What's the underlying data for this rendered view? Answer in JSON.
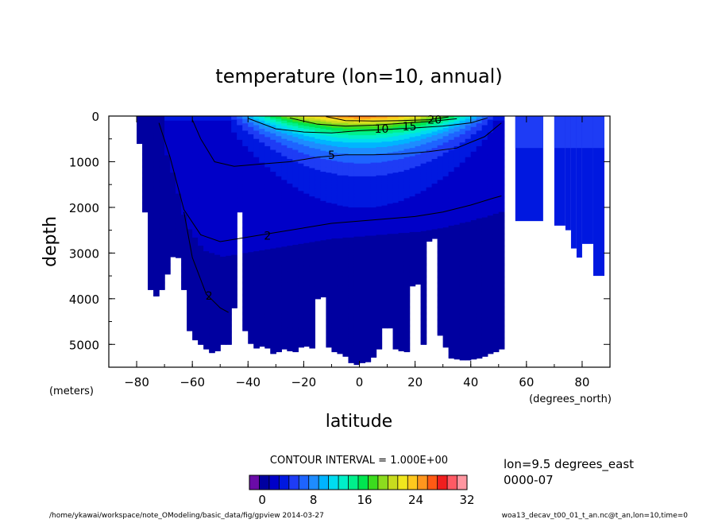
{
  "chart_data": {
    "type": "heatmap",
    "title": "temperature (lon=10, annual)",
    "xlabel": "latitude",
    "ylabel": "depth",
    "x_unit": "(degrees_north)",
    "y_unit": "(meters)",
    "xlim": [
      -90,
      90
    ],
    "ylim": [
      5500,
      0
    ],
    "y_reversed": true,
    "x_ticks": [
      -80,
      -60,
      -40,
      -20,
      0,
      20,
      40,
      60,
      80
    ],
    "x_tick_labels": [
      "−80",
      "−60",
      "−40",
      "−20",
      "0",
      "20",
      "40",
      "60",
      "80"
    ],
    "y_ticks": [
      0,
      1000,
      2000,
      3000,
      4000,
      5000
    ],
    "y_tick_labels": [
      "0",
      "1000",
      "2000",
      "3000",
      "4000",
      "5000"
    ],
    "contour_interval_text": "CONTOUR INTERVAL = 1.000E+00",
    "contour_labels": [
      {
        "text": "20",
        "lat": 27,
        "depth": 80
      },
      {
        "text": "15",
        "lat": 18,
        "depth": 230
      },
      {
        "text": "10",
        "lat": 8,
        "depth": 280
      },
      {
        "text": "5",
        "lat": -10,
        "depth": 850
      },
      {
        "text": "2",
        "lat": -33,
        "depth": 2620
      },
      {
        "text": "2",
        "lat": -54,
        "depth": 3930
      }
    ],
    "seafloor_depth": [
      {
        "lat": -80,
        "depth": 600
      },
      {
        "lat": -78,
        "depth": 2100
      },
      {
        "lat": -76,
        "depth": 3800
      },
      {
        "lat": -73,
        "depth": 4000
      },
      {
        "lat": -71,
        "depth": 3600
      },
      {
        "lat": -69,
        "depth": 3300
      },
      {
        "lat": -67,
        "depth": 2850
      },
      {
        "lat": -65,
        "depth": 3350
      },
      {
        "lat": -62,
        "depth": 4700
      },
      {
        "lat": -60,
        "depth": 4900
      },
      {
        "lat": -56,
        "depth": 5100
      },
      {
        "lat": -53,
        "depth": 5200
      },
      {
        "lat": -50,
        "depth": 5000
      },
      {
        "lat": -47,
        "depth": 5000
      },
      {
        "lat": -46,
        "depth": 4200
      },
      {
        "lat": -44,
        "depth": 2100
      },
      {
        "lat": -42,
        "depth": 4700
      },
      {
        "lat": -39,
        "depth": 5100
      },
      {
        "lat": -35,
        "depth": 5000
      },
      {
        "lat": -32,
        "depth": 5200
      },
      {
        "lat": -28,
        "depth": 5100
      },
      {
        "lat": -24,
        "depth": 5150
      },
      {
        "lat": -21,
        "depth": 5000
      },
      {
        "lat": -17,
        "depth": 5100
      },
      {
        "lat": -15,
        "depth": 2900
      },
      {
        "lat": -13,
        "depth": 5000
      },
      {
        "lat": -10,
        "depth": 5150
      },
      {
        "lat": -6,
        "depth": 5250
      },
      {
        "lat": -3,
        "depth": 5450
      },
      {
        "lat": 0,
        "depth": 5400
      },
      {
        "lat": 3,
        "depth": 5350
      },
      {
        "lat": 6,
        "depth": 5100
      },
      {
        "lat": 9,
        "depth": 4400
      },
      {
        "lat": 12,
        "depth": 5100
      },
      {
        "lat": 16,
        "depth": 5150
      },
      {
        "lat": 19,
        "depth": 3000
      },
      {
        "lat": 22,
        "depth": 5000
      },
      {
        "lat": 25,
        "depth": 1600
      },
      {
        "lat": 28,
        "depth": 4800
      },
      {
        "lat": 32,
        "depth": 5300
      },
      {
        "lat": 37,
        "depth": 5350
      },
      {
        "lat": 42,
        "depth": 5300
      },
      {
        "lat": 46,
        "depth": 5200
      },
      {
        "lat": 50,
        "depth": 5100
      },
      {
        "lat": 51,
        "depth": 1000
      }
    ],
    "isotherms": [
      {
        "value": 2,
        "points": [
          [
            -72,
            150
          ],
          [
            -68,
            900
          ],
          [
            -63,
            2050
          ],
          [
            -57,
            2600
          ],
          [
            -50,
            2750
          ],
          [
            -40,
            2650
          ],
          [
            -30,
            2550
          ],
          [
            -20,
            2450
          ],
          [
            -10,
            2350
          ],
          [
            0,
            2300
          ],
          [
            10,
            2250
          ],
          [
            20,
            2200
          ],
          [
            30,
            2100
          ],
          [
            40,
            1950
          ],
          [
            48,
            1800
          ],
          [
            51,
            1750
          ]
        ]
      },
      {
        "value": 2,
        "points": [
          [
            -63,
            2100
          ],
          [
            -60,
            3100
          ],
          [
            -55,
            3900
          ],
          [
            -50,
            4200
          ],
          [
            -47,
            4300
          ]
        ]
      },
      {
        "value": 5,
        "points": [
          [
            -60,
            80
          ],
          [
            -57,
            500
          ],
          [
            -52,
            1000
          ],
          [
            -45,
            1100
          ],
          [
            -35,
            1050
          ],
          [
            -25,
            1000
          ],
          [
            -15,
            900
          ],
          [
            -5,
            850
          ],
          [
            5,
            850
          ],
          [
            15,
            830
          ],
          [
            25,
            780
          ],
          [
            35,
            700
          ],
          [
            45,
            450
          ],
          [
            51,
            150
          ]
        ]
      },
      {
        "value": 10,
        "points": [
          [
            -40,
            50
          ],
          [
            -30,
            280
          ],
          [
            -20,
            350
          ],
          [
            -10,
            370
          ],
          [
            0,
            320
          ],
          [
            10,
            290
          ],
          [
            20,
            260
          ],
          [
            30,
            220
          ],
          [
            40,
            150
          ],
          [
            46,
            40
          ]
        ]
      },
      {
        "value": 15,
        "points": [
          [
            -25,
            40
          ],
          [
            -15,
            180
          ],
          [
            -5,
            220
          ],
          [
            5,
            200
          ],
          [
            15,
            160
          ],
          [
            25,
            120
          ],
          [
            35,
            60
          ]
        ]
      },
      {
        "value": 20,
        "points": [
          [
            -12,
            10
          ],
          [
            -5,
            100
          ],
          [
            5,
            110
          ],
          [
            15,
            100
          ],
          [
            25,
            80
          ],
          [
            32,
            20
          ]
        ]
      }
    ],
    "colorbar": {
      "min": -2,
      "max": 32,
      "tick_values": [
        0,
        8,
        16,
        24,
        32
      ],
      "tick_labels": [
        "0",
        "8",
        "16",
        "24",
        "32"
      ],
      "colors": [
        "#6a0ba8",
        "#0000a0",
        "#0000c8",
        "#0018e0",
        "#1e3cf5",
        "#1e64ff",
        "#1e8cff",
        "#00b4ff",
        "#00dcf0",
        "#00f0c8",
        "#00f08c",
        "#00e650",
        "#3cdc1e",
        "#8cdc1e",
        "#c8dc1e",
        "#f0e61e",
        "#ffc81e",
        "#ff961e",
        "#ff5a14",
        "#f01e1e",
        "#ff5a64",
        "#ff96a0"
      ]
    },
    "annotations": [
      "lon=9.5 degrees_east",
      "0000-07"
    ],
    "footer_left": "/home/ykawai/workspace/note_OModeling/basic_data/fig/gpview  2014-03-27",
    "footer_right": "woa13_decav_t00_01_t_an.nc@t_an,lon=10,time=0"
  }
}
